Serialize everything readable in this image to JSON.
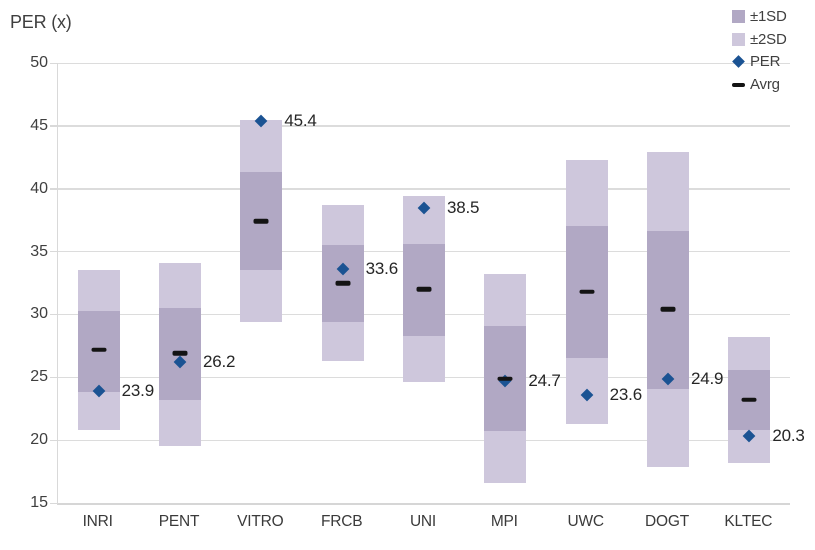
{
  "chart": {
    "y_axis_title": "PER (x)"
  },
  "colors": {
    "band_1sd": "#b1a8c4",
    "band_2sd": "#cec7dc",
    "per_diamond": "#1b5393",
    "avg_dash": "#141414",
    "gridline": "#dcdcdc",
    "axis_text": "#3f3f3f",
    "point_label_text": "#262626"
  },
  "legend": {
    "items": [
      {
        "label": "±1SD",
        "marker": "square-dark"
      },
      {
        "label": "±2SD",
        "marker": "square-light"
      },
      {
        "label": "PER",
        "marker": "diamond"
      },
      {
        "label": "Avrg",
        "marker": "dash"
      }
    ]
  },
  "chart_data": {
    "type": "range-band-chart",
    "title": "PER (x)",
    "ylabel": "PER (x)",
    "ylim": [
      15,
      50
    ],
    "yticks": [
      15,
      20,
      25,
      30,
      35,
      40,
      45,
      50
    ],
    "grid": "horizontal",
    "legend_position": "top-right",
    "categories": [
      "INRI",
      "PENT",
      "VITRO",
      "FRCB",
      "UNI",
      "MPI",
      "UWC",
      "DOGT",
      "KLTEC"
    ],
    "series": [
      {
        "name": "±2SD",
        "type": "band",
        "ranges": [
          [
            20.8,
            33.5
          ],
          [
            19.5,
            34.1
          ],
          [
            29.4,
            45.5
          ],
          [
            26.3,
            38.7
          ],
          [
            24.6,
            39.4
          ],
          [
            16.6,
            33.2
          ],
          [
            21.3,
            42.3
          ],
          [
            17.9,
            42.9
          ],
          [
            18.2,
            28.2
          ]
        ]
      },
      {
        "name": "±1SD",
        "type": "band",
        "ranges": [
          [
            23.8,
            30.3
          ],
          [
            23.2,
            30.5
          ],
          [
            33.5,
            41.3
          ],
          [
            29.4,
            35.5
          ],
          [
            28.3,
            35.6
          ],
          [
            20.7,
            29.1
          ],
          [
            26.5,
            37.0
          ],
          [
            24.1,
            36.6
          ],
          [
            20.8,
            25.6
          ]
        ]
      },
      {
        "name": "PER",
        "type": "point",
        "values": [
          23.9,
          26.2,
          45.4,
          33.6,
          38.5,
          24.7,
          23.6,
          24.9,
          20.3
        ]
      },
      {
        "name": "Avrg",
        "type": "dash",
        "values": [
          27.2,
          26.9,
          37.4,
          32.5,
          32.0,
          24.9,
          31.8,
          30.4,
          23.2
        ]
      }
    ],
    "point_labels": [
      "23.9",
      "26.2",
      "45.4",
      "33.6",
      "38.5",
      "24.7",
      "23.6",
      "24.9",
      "20.3"
    ]
  }
}
